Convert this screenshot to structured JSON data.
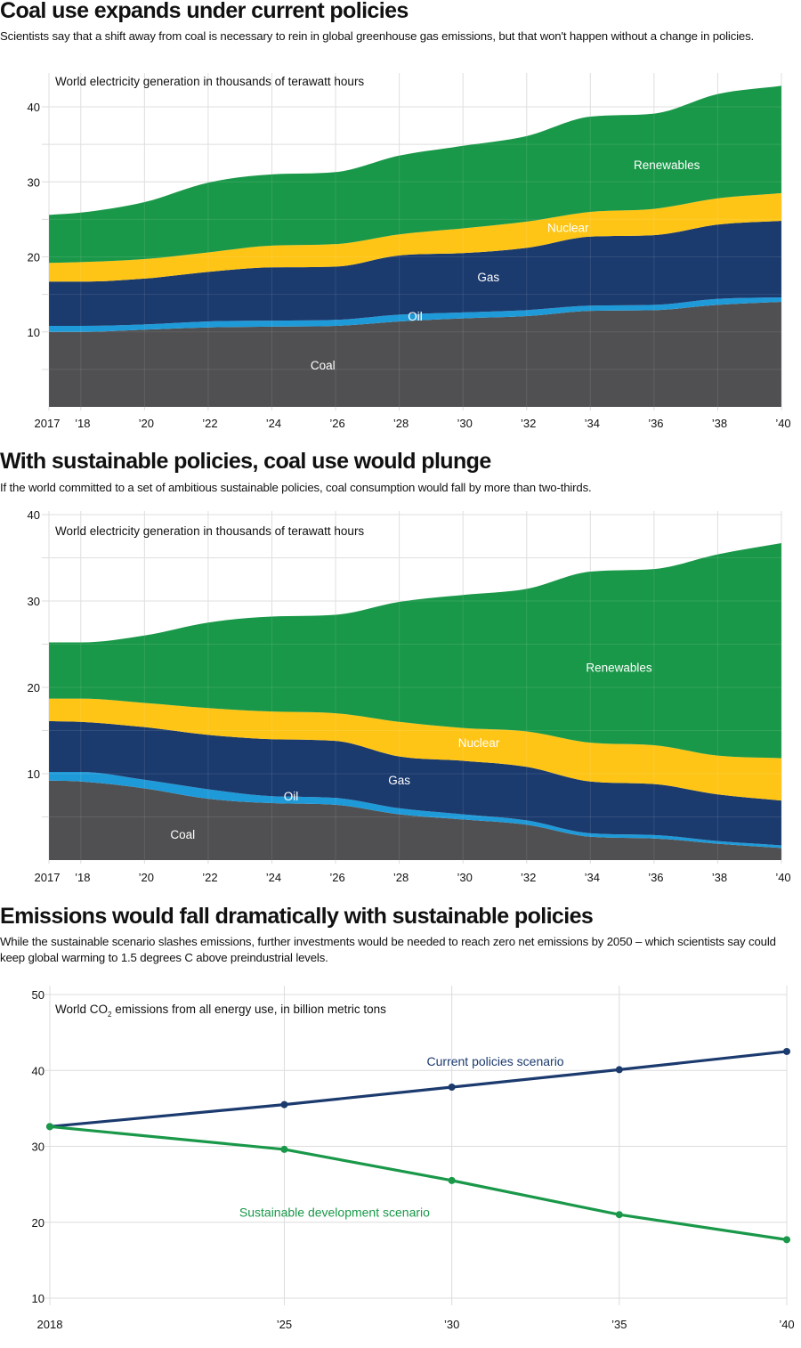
{
  "sections": [
    {
      "title": "Coal use expands under current policies",
      "subtitle": "Scientists say that a shift away from coal is necessary to rein in global greenhouse gas emissions, but that won't happen without a change in policies."
    },
    {
      "title": "With sustainable policies, coal use would plunge",
      "subtitle": "If the world committed to a set of ambitious sustainable policies, coal consumption would fall by more than two-thirds."
    },
    {
      "title": "Emissions would fall dramatically with sustainable policies",
      "subtitle": "While the sustainable scenario slashes emissions, further investments would be needed to reach zero net emissions by 2050 – which scientists say could keep global warming to 1.5 degrees C above preindustrial levels."
    }
  ],
  "colors": {
    "coal": "#505052",
    "oil": "#1f9ad8",
    "gas": "#1b3a6e",
    "nuclear": "#fec516",
    "renewables": "#1a9849",
    "current_line": "#1b3a6e",
    "sustainable_line": "#1a9849"
  },
  "chart_data": [
    {
      "type": "area",
      "stacked": true,
      "title": "Coal use expands under current policies",
      "unit_label": "World electricity generation in thousands of terawatt hours",
      "x": [
        2017,
        2018,
        2020,
        2022,
        2024,
        2026,
        2028,
        2030,
        2032,
        2034,
        2036,
        2038,
        2040
      ],
      "x_tick_values": [
        2017,
        2018,
        2020,
        2022,
        2024,
        2026,
        2028,
        2030,
        2032,
        2034,
        2036,
        2038,
        2040
      ],
      "x_tick_labels": [
        "2017",
        "’18",
        "’20",
        "’22",
        "’24",
        "’26",
        "’28",
        "’30",
        "’32",
        "’34",
        "’36",
        "’38",
        "’40"
      ],
      "y_tick_values": [
        10,
        20,
        30,
        40
      ],
      "y_tick_labels": [
        "10",
        "20",
        "30",
        "40"
      ],
      "ylim": [
        0,
        43
      ],
      "grid": true,
      "series": [
        {
          "name": "Coal",
          "key": "coal",
          "values": [
            10.0,
            10.0,
            10.3,
            10.6,
            10.7,
            10.8,
            11.4,
            11.8,
            12.1,
            12.8,
            12.9,
            13.6,
            14.0
          ]
        },
        {
          "name": "Oil",
          "key": "oil",
          "values": [
            0.8,
            0.8,
            0.7,
            0.8,
            0.8,
            0.8,
            0.9,
            0.8,
            0.8,
            0.7,
            0.7,
            0.8,
            0.6
          ]
        },
        {
          "name": "Gas",
          "key": "gas",
          "values": [
            5.9,
            5.9,
            6.1,
            6.6,
            7.1,
            7.1,
            7.9,
            7.9,
            8.3,
            9.2,
            9.3,
            9.9,
            10.2
          ]
        },
        {
          "name": "Nuclear",
          "key": "nuclear",
          "values": [
            2.5,
            2.6,
            2.6,
            2.6,
            2.9,
            3.0,
            2.8,
            3.3,
            3.5,
            3.3,
            3.5,
            3.5,
            3.7
          ]
        },
        {
          "name": "Renewables",
          "key": "renewables",
          "values": [
            6.4,
            6.6,
            7.6,
            9.3,
            9.5,
            9.6,
            10.5,
            11.0,
            11.4,
            12.7,
            12.7,
            13.9,
            14.3
          ]
        }
      ],
      "area_labels": [
        {
          "text": "Coal",
          "x": 2025.6,
          "y": 5.6
        },
        {
          "text": "Oil",
          "x": 2028.5,
          "y": 12.1
        },
        {
          "text": "Gas",
          "x": 2030.8,
          "y": 17.3
        },
        {
          "text": "Nuclear",
          "x": 2033.3,
          "y": 23.9
        },
        {
          "text": "Renewables",
          "x": 2036.4,
          "y": 32.3
        }
      ]
    },
    {
      "type": "area",
      "stacked": true,
      "title": "With sustainable policies, coal use would plunge",
      "unit_label": "World electricity generation in thousands of terawatt hours",
      "x": [
        2017,
        2018,
        2020,
        2022,
        2024,
        2026,
        2028,
        2030,
        2032,
        2034,
        2036,
        2038,
        2040
      ],
      "x_tick_values": [
        2017,
        2018,
        2020,
        2022,
        2024,
        2026,
        2028,
        2030,
        2032,
        2034,
        2036,
        2038,
        2040
      ],
      "x_tick_labels": [
        "2017",
        "’18",
        "’20",
        "’22",
        "’24",
        "’26",
        "’28",
        "’30",
        "’32",
        "’34",
        "’36",
        "’38",
        "’40"
      ],
      "y_tick_values": [
        10,
        20,
        30,
        40
      ],
      "y_tick_labels": [
        "10",
        "20",
        "30",
        "40"
      ],
      "ylim": [
        0,
        40
      ],
      "grid": true,
      "series": [
        {
          "name": "Coal",
          "key": "coal",
          "values": [
            9.2,
            9.1,
            8.3,
            7.1,
            6.6,
            6.4,
            5.3,
            4.7,
            4.1,
            2.7,
            2.5,
            1.9,
            1.4
          ]
        },
        {
          "name": "Oil",
          "key": "oil",
          "values": [
            1.0,
            1.1,
            1.0,
            1.1,
            0.8,
            0.8,
            0.7,
            0.6,
            0.5,
            0.4,
            0.4,
            0.3,
            0.3
          ]
        },
        {
          "name": "Gas",
          "key": "gas",
          "values": [
            5.9,
            5.8,
            6.1,
            6.3,
            6.6,
            6.6,
            6.0,
            6.2,
            6.2,
            6.0,
            5.9,
            5.4,
            5.2
          ]
        },
        {
          "name": "Nuclear",
          "key": "nuclear",
          "values": [
            2.6,
            2.7,
            2.8,
            3.1,
            3.2,
            3.2,
            4.0,
            3.8,
            4.1,
            4.5,
            4.5,
            4.5,
            4.9
          ]
        },
        {
          "name": "Renewables",
          "key": "renewables",
          "values": [
            6.5,
            6.5,
            7.8,
            9.9,
            11.0,
            11.4,
            13.9,
            15.4,
            16.5,
            19.8,
            20.4,
            23.3,
            24.9
          ]
        }
      ],
      "area_labels": [
        {
          "text": "Coal",
          "x": 2021.2,
          "y": 3.0
        },
        {
          "text": "Oil",
          "x": 2024.6,
          "y": 7.4
        },
        {
          "text": "Gas",
          "x": 2028.0,
          "y": 9.3
        },
        {
          "text": "Nuclear",
          "x": 2030.5,
          "y": 13.6
        },
        {
          "text": "Renewables",
          "x": 2034.9,
          "y": 22.3
        }
      ]
    },
    {
      "type": "line",
      "title": "Emissions would fall dramatically with sustainable policies",
      "unit_label_parts": [
        "World CO",
        "2",
        " emissions from all energy use, in billion metric tons"
      ],
      "x": [
        2018,
        2025,
        2030,
        2035,
        2040
      ],
      "x_tick_values": [
        2018,
        2025,
        2030,
        2035,
        2040
      ],
      "x_tick_labels": [
        "2018",
        "’25",
        "’30",
        "’35",
        "’40"
      ],
      "y_tick_values": [
        10,
        20,
        30,
        40,
        50
      ],
      "y_tick_labels": [
        "10",
        "20",
        "30",
        "40",
        "50"
      ],
      "ylim": [
        10,
        50
      ],
      "grid": true,
      "series": [
        {
          "name": "Current policies scenario",
          "key": "current_line",
          "values": [
            32.6,
            35.5,
            37.8,
            40.1,
            42.5
          ]
        },
        {
          "name": "Sustainable development scenario",
          "key": "sustainable_line",
          "values": [
            32.6,
            29.6,
            25.5,
            21.0,
            17.7
          ]
        }
      ],
      "series_labels": [
        {
          "text": "Current policies scenario",
          "key": "current_line",
          "x": 2031.3,
          "y": 41.2
        },
        {
          "text": "Sustainable development scenario",
          "key": "sustainable_line",
          "x": 2026.5,
          "y": 21.3
        }
      ]
    }
  ]
}
